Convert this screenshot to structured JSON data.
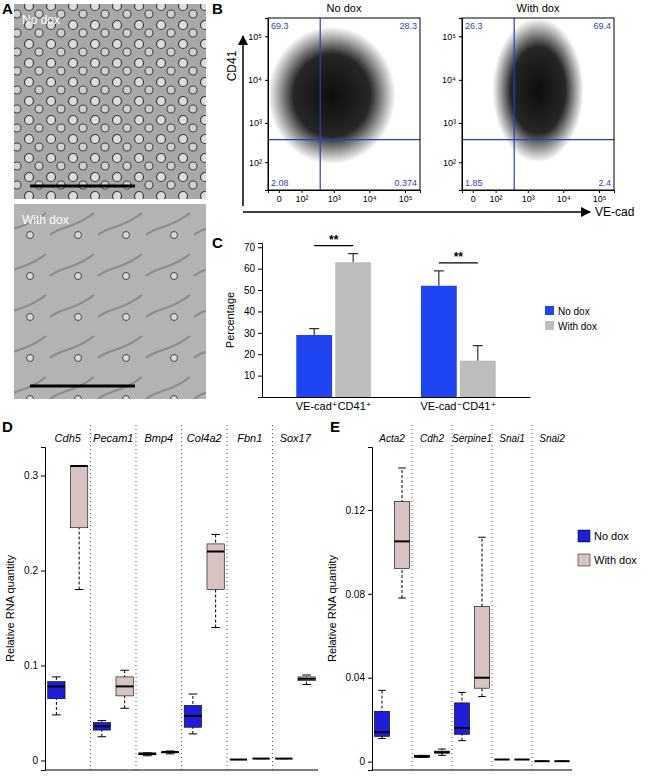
{
  "chart_data": [
    {
      "type": "image",
      "panel_label": "A",
      "images": [
        {
          "label": "No dox"
        },
        {
          "label": "With dox"
        }
      ]
    },
    {
      "type": "flow_cytometry",
      "panel_label": "B",
      "x_label": "VE-cad",
      "y_label": "CD41",
      "log": true,
      "xlim": [
        -30,
        262144
      ],
      "ylim": [
        0,
        262144
      ],
      "xticks": [
        0,
        {
          "value": 100,
          "label": "10²"
        },
        {
          "value": 1000,
          "label": "10³"
        },
        {
          "value": 10000,
          "label": "10⁴"
        },
        {
          "value": 100000,
          "label": "10⁵"
        }
      ],
      "yticks": [
        {
          "value": 100,
          "label": "10²"
        },
        {
          "value": 1000,
          "label": "10³"
        },
        {
          "value": 10000,
          "label": "10⁴"
        },
        {
          "value": 100000,
          "label": "10⁵"
        }
      ],
      "gates": {
        "x": 400,
        "y": 400
      },
      "plots": [
        {
          "title": "No dox",
          "quadrants": {
            "upper_left": 69.3,
            "upper_right": 28.3,
            "lower_left": 2.08,
            "lower_right": 0.374
          }
        },
        {
          "title": "With dox",
          "quadrants": {
            "upper_left": 26.3,
            "upper_right": 69.4,
            "lower_left": 1.85,
            "lower_right": 2.4
          }
        }
      ]
    },
    {
      "type": "bar",
      "panel_label": "C",
      "y_label": "Percentage",
      "categories": [
        "VE-cad⁺CD41⁺",
        "VE-cad⁻CD41⁺"
      ],
      "series": [
        {
          "name": "No dox",
          "color": "#1f45f2",
          "values": [
            29,
            52
          ],
          "errors": [
            3,
            7
          ]
        },
        {
          "name": "With dox",
          "color": "#bdbdbd",
          "values": [
            63,
            17
          ],
          "errors": [
            4,
            7
          ]
        }
      ],
      "ylim": [
        0,
        72
      ],
      "yticks": [
        10,
        20,
        30,
        40,
        50,
        60,
        70
      ],
      "annotations": [
        "**",
        "**"
      ],
      "legend": "right"
    },
    {
      "type": "box",
      "panel_label": "D",
      "y_label": "Relative RNA quantity",
      "categories": [
        "Cdh5",
        "Pecam1",
        "Bmp4",
        "Col4a2",
        "Fbn1",
        "Sox17"
      ],
      "series": [
        {
          "name": "No dox",
          "color": "#1e1ed8",
          "min": [
            0.048,
            0.025,
            0.005,
            0.028,
            0.001,
            0.002
          ],
          "q1": [
            0.065,
            0.032,
            0.006,
            0.035,
            0.001,
            0.002
          ],
          "median": [
            0.078,
            0.036,
            0.007,
            0.047,
            0.001,
            0.002
          ],
          "q3": [
            0.083,
            0.04,
            0.008,
            0.058,
            0.001,
            0.002
          ],
          "max": [
            0.088,
            0.042,
            0.008,
            0.07,
            0.001,
            0.002
          ]
        },
        {
          "name": "With dox",
          "color": "#d8c3c3",
          "min": [
            0.18,
            0.055,
            0.007,
            0.14,
            0.002,
            0.08
          ],
          "q1": [
            0.245,
            0.068,
            0.008,
            0.18,
            0.002,
            0.084
          ],
          "median": [
            0.31,
            0.078,
            0.009,
            0.22,
            0.002,
            0.086
          ],
          "q3": [
            0.31,
            0.088,
            0.009,
            0.228,
            0.002,
            0.088
          ],
          "max": [
            0.31,
            0.095,
            0.01,
            0.238,
            0.002,
            0.09
          ]
        }
      ],
      "ylim": [
        -0.01,
        0.33
      ],
      "yticks": [
        0,
        0.1,
        0.2,
        0.3
      ]
    },
    {
      "type": "box",
      "panel_label": "E",
      "y_label": "Relative RNA quantity",
      "categories": [
        "Acta2",
        "Cdh2",
        "Serpine1",
        "Snai1",
        "Snai2"
      ],
      "series": [
        {
          "name": "No dox",
          "color": "#1e1ed8",
          "min": [
            0.011,
            0.002,
            0.01,
            0.001,
            0.0002
          ],
          "q1": [
            0.012,
            0.002,
            0.013,
            0.001,
            0.0002
          ],
          "median": [
            0.014,
            0.0025,
            0.016,
            0.001,
            0.0002
          ],
          "q3": [
            0.024,
            0.003,
            0.028,
            0.001,
            0.0002
          ],
          "max": [
            0.034,
            0.003,
            0.033,
            0.001,
            0.0002
          ]
        },
        {
          "name": "With dox",
          "color": "#d8c3c3",
          "min": [
            0.078,
            0.003,
            0.031,
            0.001,
            0.0002
          ],
          "q1": [
            0.092,
            0.004,
            0.035,
            0.001,
            0.0002
          ],
          "median": [
            0.105,
            0.0045,
            0.04,
            0.001,
            0.0002
          ],
          "q3": [
            0.124,
            0.005,
            0.074,
            0.001,
            0.0002
          ],
          "max": [
            0.14,
            0.006,
            0.107,
            0.001,
            0.0002
          ]
        }
      ],
      "ylim": [
        -0.004,
        0.15
      ],
      "yticks": [
        0,
        0.04,
        0.08,
        0.12
      ],
      "legend": "right"
    }
  ]
}
